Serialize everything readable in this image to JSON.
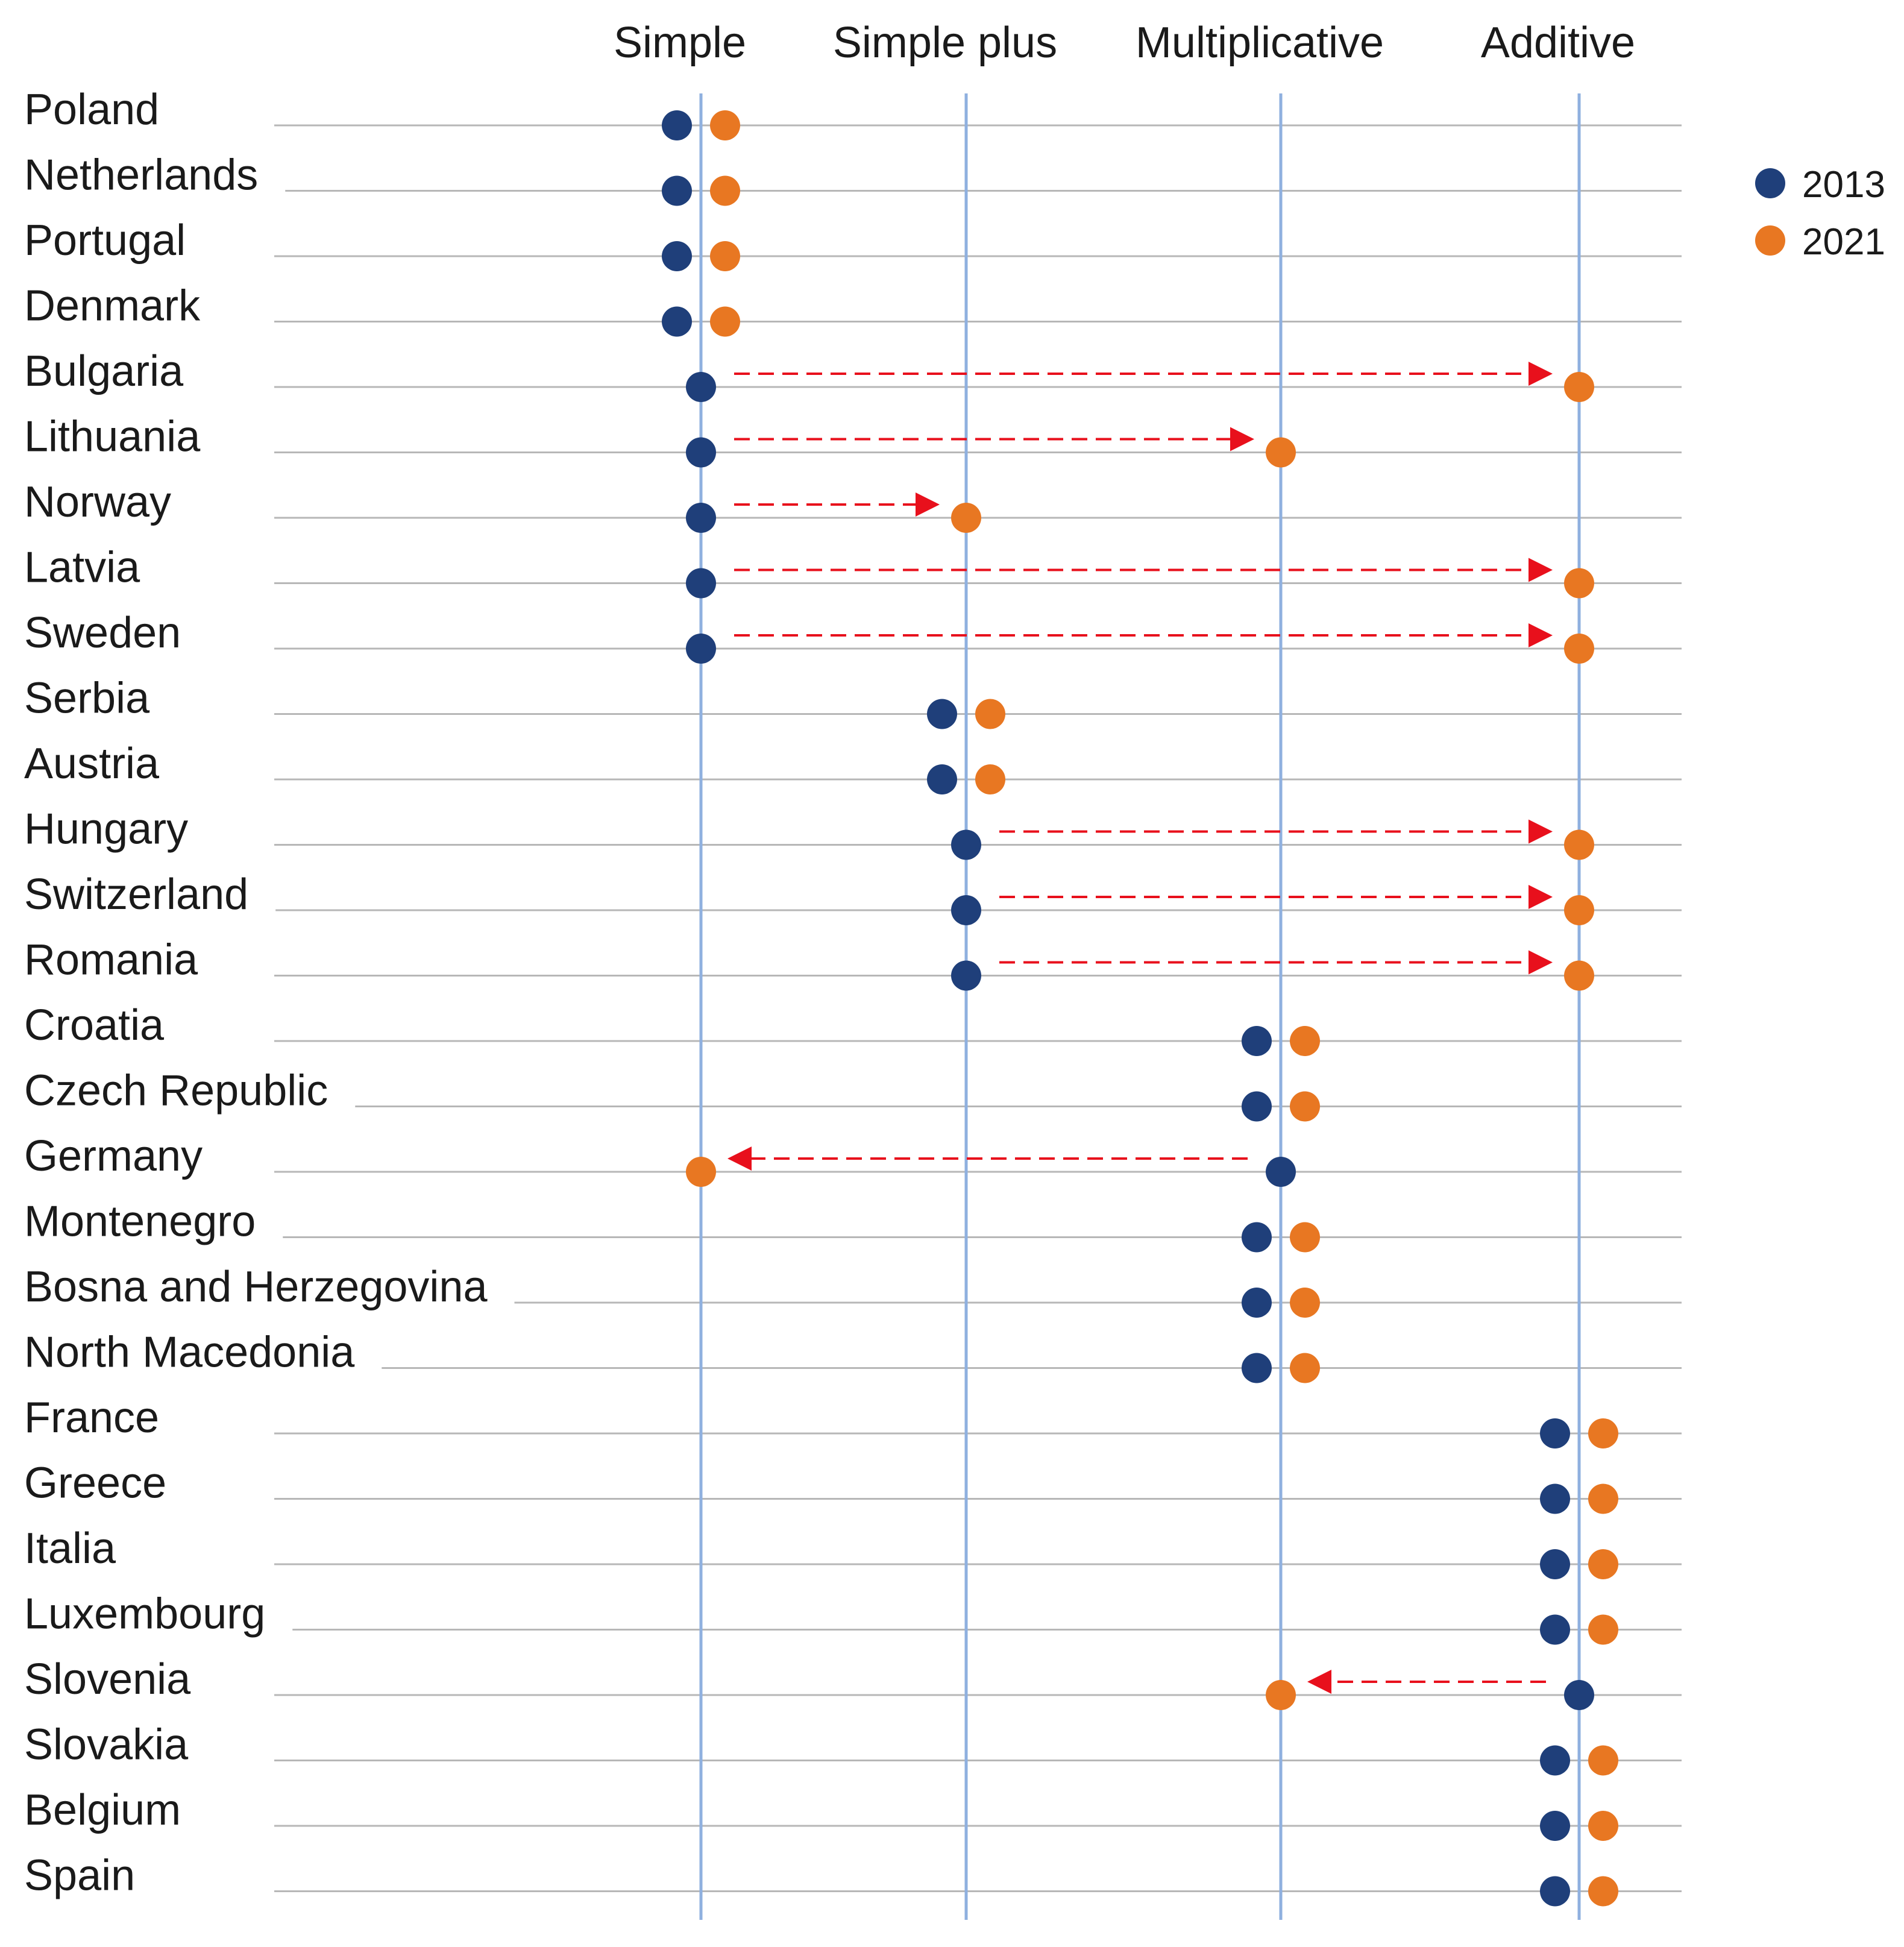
{
  "chart_data": {
    "type": "dot-plot",
    "title": "",
    "categories": [
      "Simple",
      "Simple plus",
      "Multiplicative",
      "Additive"
    ],
    "series": [
      {
        "name": "2013",
        "color": "#1f3f7a"
      },
      {
        "name": "2021",
        "color": "#e87722"
      }
    ],
    "arrow_color": "#e8101c",
    "gridline_color": "#b7b7b7",
    "column_line_color": "#8fb0df",
    "rows": [
      {
        "country": "Poland",
        "2013": "Simple",
        "2021": "Simple"
      },
      {
        "country": "Netherlands",
        "2013": "Simple",
        "2021": "Simple"
      },
      {
        "country": "Portugal",
        "2013": "Simple",
        "2021": "Simple"
      },
      {
        "country": "Denmark",
        "2013": "Simple",
        "2021": "Simple"
      },
      {
        "country": "Bulgaria",
        "2013": "Simple",
        "2021": "Additive"
      },
      {
        "country": "Lithuania",
        "2013": "Simple",
        "2021": "Multiplicative"
      },
      {
        "country": "Norway",
        "2013": "Simple",
        "2021": "Simple plus"
      },
      {
        "country": "Latvia",
        "2013": "Simple",
        "2021": "Additive"
      },
      {
        "country": "Sweden",
        "2013": "Simple",
        "2021": "Additive"
      },
      {
        "country": "Serbia",
        "2013": "Simple plus",
        "2021": "Simple plus"
      },
      {
        "country": "Austria",
        "2013": "Simple plus",
        "2021": "Simple plus"
      },
      {
        "country": "Hungary",
        "2013": "Simple plus",
        "2021": "Additive"
      },
      {
        "country": "Switzerland",
        "2013": "Simple plus",
        "2021": "Additive"
      },
      {
        "country": "Romania",
        "2013": "Simple plus",
        "2021": "Additive"
      },
      {
        "country": "Croatia",
        "2013": "Multiplicative",
        "2021": "Multiplicative"
      },
      {
        "country": "Czech Republic",
        "2013": "Multiplicative",
        "2021": "Multiplicative"
      },
      {
        "country": "Germany",
        "2013": "Multiplicative",
        "2021": "Simple"
      },
      {
        "country": "Montenegro",
        "2013": "Multiplicative",
        "2021": "Multiplicative"
      },
      {
        "country": "Bosna and Herzegovina",
        "2013": "Multiplicative",
        "2021": "Multiplicative"
      },
      {
        "country": "North Macedonia",
        "2013": "Multiplicative",
        "2021": "Multiplicative"
      },
      {
        "country": "France",
        "2013": "Additive",
        "2021": "Additive"
      },
      {
        "country": "Greece",
        "2013": "Additive",
        "2021": "Additive"
      },
      {
        "country": "Italia",
        "2013": "Additive",
        "2021": "Additive"
      },
      {
        "country": "Luxembourg",
        "2013": "Additive",
        "2021": "Additive"
      },
      {
        "country": "Slovenia",
        "2013": "Additive",
        "2021": "Multiplicative"
      },
      {
        "country": "Slovakia",
        "2013": "Additive",
        "2021": "Additive"
      },
      {
        "country": "Belgium",
        "2013": "Additive",
        "2021": "Additive"
      },
      {
        "country": "Spain",
        "2013": "Additive",
        "2021": "Additive"
      }
    ]
  }
}
